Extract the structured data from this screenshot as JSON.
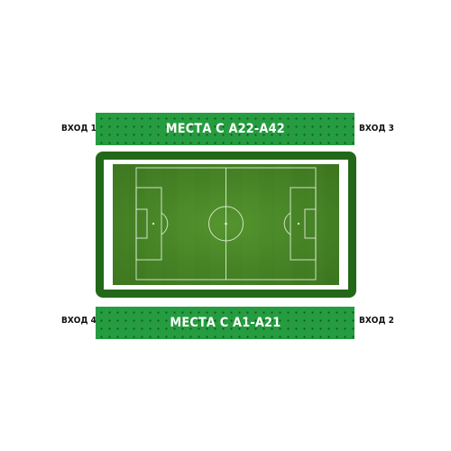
{
  "stands": {
    "top": {
      "label": "МЕСТА С А22-А42"
    },
    "bottom": {
      "label": "МЕСТА С А1-А21"
    }
  },
  "gates": {
    "gate1": "ВХОД 1",
    "gate2": "ВХОД 2",
    "gate3": "ВХОД 3",
    "gate4": "ВХОД 4"
  },
  "colors": {
    "stand_green": "#259c3f",
    "frame_green": "#226818",
    "grass_light": "#4f8f2b",
    "grass_dark": "#3f7d22"
  },
  "icons": {
    "pitch": "football-pitch-icon"
  }
}
